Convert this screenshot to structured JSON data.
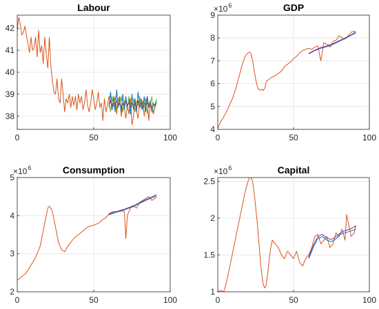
{
  "chart_data": [
    {
      "type": "line",
      "title": "Labour",
      "multiplier_label": "",
      "xlim": [
        0,
        100
      ],
      "ylim": [
        37.4,
        42.6
      ],
      "xticks": [
        0,
        50,
        100
      ],
      "yticks": [
        38,
        39,
        40,
        41,
        42
      ],
      "grid": true,
      "series": [
        {
          "color": "#D95319",
          "x": [
            0,
            1,
            2,
            3,
            4,
            5,
            6,
            7,
            8,
            9,
            10,
            11,
            12,
            13,
            14,
            15,
            16,
            17,
            18,
            19,
            20,
            21,
            22,
            23,
            24,
            25,
            26,
            27,
            28,
            29,
            30,
            31,
            32,
            33,
            34,
            35,
            36,
            37,
            38,
            39,
            40,
            41,
            42,
            43,
            44,
            45,
            46,
            47,
            48,
            49,
            50,
            51,
            52,
            53,
            54,
            55,
            56,
            57,
            58,
            59,
            60,
            61,
            62,
            63,
            64,
            65,
            66,
            67,
            68,
            69,
            70,
            71,
            72,
            73,
            74,
            75,
            76,
            77,
            78,
            79,
            80,
            81,
            82,
            83,
            84,
            85,
            86,
            87,
            88,
            89,
            90,
            91
          ],
          "y": [
            41.9,
            42.5,
            42.2,
            41.7,
            41.8,
            42.1,
            41.7,
            41.3,
            40.9,
            41.6,
            41.0,
            41.1,
            41.6,
            40.7,
            41.9,
            40.9,
            41.2,
            40.4,
            41.6,
            40.8,
            40.2,
            41.6,
            40.3,
            39.6,
            39.1,
            39.0,
            39.7,
            38.8,
            38.6,
            39.7,
            39.0,
            38.2,
            38.8,
            38.6,
            39.0,
            38.4,
            38.9,
            38.5,
            38.9,
            38.3,
            39.0,
            38.6,
            38.9,
            38.3,
            38.6,
            39.2,
            38.5,
            38.2,
            38.6,
            39.2,
            38.8,
            38.3,
            38.6,
            39.1,
            38.4,
            38.6,
            37.8,
            38.8,
            38.2,
            38.5,
            38.9,
            38.7,
            38.3,
            38.8,
            38.6,
            38.1,
            38.7,
            38.9,
            38.0,
            38.6,
            38.4,
            37.9,
            38.5,
            38.1,
            38.8,
            37.6,
            38.0,
            38.6,
            38.2,
            37.9,
            38.8,
            38.4,
            38.7,
            38.0,
            38.6,
            38.9,
            37.8,
            38.5,
            38.3,
            38.1,
            38.4,
            38.6
          ]
        },
        {
          "color": "#0072BD",
          "x": [
            60,
            61,
            62,
            63,
            64,
            65,
            66,
            67,
            68,
            69,
            70,
            71,
            72,
            73,
            74,
            75,
            76,
            77,
            78,
            79,
            80,
            81,
            82,
            83,
            84,
            85,
            86,
            87,
            88,
            89,
            90,
            91
          ],
          "y": [
            38.4,
            39.1,
            38.3,
            38.9,
            38.2,
            39.2,
            38.4,
            38.8,
            38.2,
            39.0,
            38.3,
            38.9,
            38.4,
            38.8,
            38.1,
            39.0,
            38.3,
            38.8,
            38.2,
            39.1,
            38.4,
            38.8,
            38.3,
            38.9,
            38.2,
            38.9,
            38.4,
            38.7,
            38.2,
            38.6,
            38.4,
            38.7
          ]
        },
        {
          "color": "#77AC30",
          "x": [
            60,
            61,
            62,
            63,
            64,
            65,
            66,
            67,
            68,
            69,
            70,
            71,
            72,
            73,
            74,
            75,
            76,
            77,
            78,
            79,
            80,
            81,
            82,
            83,
            84,
            85,
            86,
            87,
            88,
            89,
            90,
            91
          ],
          "y": [
            38.6,
            38.2,
            38.9,
            38.4,
            38.9,
            38.3,
            38.8,
            38.5,
            38.9,
            38.2,
            38.7,
            38.6,
            38.3,
            38.9,
            38.5,
            38.4,
            38.8,
            38.2,
            38.7,
            38.5,
            38.9,
            38.3,
            38.6,
            38.4,
            38.8,
            38.1,
            38.6,
            38.5,
            38.9,
            38.1,
            38.5,
            38.8
          ]
        },
        {
          "color": "#7E2F8E",
          "x": [
            60,
            61,
            62,
            63,
            64,
            65,
            66,
            67,
            68,
            69,
            70,
            71,
            72,
            73,
            74,
            75,
            76,
            77,
            78,
            79,
            80,
            81,
            82,
            83,
            84,
            85,
            86,
            87,
            88,
            89,
            90,
            91
          ],
          "y": [
            38.5,
            38.7,
            38.5,
            38.6,
            38.5,
            38.7,
            38.5,
            38.6,
            38.4,
            38.6,
            38.5,
            38.7,
            38.5,
            38.6,
            38.4,
            38.6,
            38.5,
            38.6,
            38.4,
            38.7,
            38.5,
            38.6,
            38.4,
            38.6,
            38.5,
            38.6,
            38.4,
            38.6,
            38.4,
            38.5,
            38.5,
            38.6
          ]
        }
      ]
    },
    {
      "type": "line",
      "title": "GDP",
      "multiplier_label": "×10",
      "multiplier_exponent": "6",
      "xlim": [
        0,
        100
      ],
      "ylim": [
        4,
        9
      ],
      "xticks": [
        0,
        50,
        100
      ],
      "yticks": [
        4,
        5,
        6,
        7,
        8,
        9
      ],
      "grid": true,
      "series": [
        {
          "color": "#D95319",
          "x": [
            0,
            2,
            4,
            6,
            8,
            10,
            12,
            14,
            16,
            18,
            20,
            21,
            22,
            23,
            24,
            25,
            26,
            27,
            28,
            29,
            30,
            31,
            32,
            34,
            36,
            38,
            40,
            42,
            44,
            46,
            48,
            50,
            52,
            54,
            56,
            58,
            60,
            62,
            64,
            66,
            68,
            70,
            72,
            73,
            74,
            75,
            76,
            78,
            80,
            82,
            84,
            86,
            88,
            90,
            91
          ],
          "y": [
            4.05,
            4.35,
            4.55,
            4.8,
            5.1,
            5.4,
            5.8,
            6.3,
            6.8,
            7.2,
            7.35,
            7.38,
            7.3,
            7.0,
            6.6,
            6.2,
            5.9,
            5.75,
            5.72,
            5.76,
            5.7,
            5.8,
            6.1,
            6.2,
            6.3,
            6.35,
            6.45,
            6.55,
            6.75,
            6.85,
            6.95,
            7.1,
            7.2,
            7.35,
            7.45,
            7.5,
            7.55,
            7.5,
            7.6,
            7.65,
            7.0,
            7.8,
            7.7,
            7.7,
            7.6,
            7.7,
            7.85,
            7.9,
            8.1,
            8.0,
            7.95,
            8.1,
            8.25,
            8.3,
            8.25
          ]
        },
        {
          "color": "#0072BD",
          "x": [
            60,
            64,
            68,
            72,
            76,
            80,
            84,
            88,
            91
          ],
          "y": [
            7.3,
            7.45,
            7.55,
            7.62,
            7.72,
            7.85,
            7.98,
            8.12,
            8.22
          ]
        },
        {
          "color": "#7E2F8E",
          "x": [
            60,
            64,
            68,
            72,
            76,
            80,
            84,
            88,
            91
          ],
          "y": [
            7.32,
            7.47,
            7.58,
            7.65,
            7.75,
            7.88,
            8.0,
            8.14,
            8.26
          ]
        }
      ]
    },
    {
      "type": "line",
      "title": "Consumption",
      "multiplier_label": "×10",
      "multiplier_exponent": "6",
      "xlim": [
        0,
        100
      ],
      "ylim": [
        2,
        5
      ],
      "xticks": [
        0,
        50,
        100
      ],
      "yticks": [
        2,
        3,
        4,
        5
      ],
      "grid": true,
      "series": [
        {
          "color": "#D95319",
          "x": [
            0,
            3,
            6,
            9,
            12,
            15,
            17,
            19,
            20,
            21,
            22,
            23,
            24,
            25,
            27,
            29,
            31,
            33,
            35,
            37,
            40,
            43,
            46,
            50,
            53,
            56,
            58,
            60,
            62,
            64,
            66,
            68,
            70,
            71,
            72,
            73,
            74,
            76,
            78,
            80,
            82,
            84,
            86,
            88,
            90,
            91
          ],
          "y": [
            2.3,
            2.4,
            2.5,
            2.7,
            2.9,
            3.2,
            3.6,
            4.0,
            4.2,
            4.25,
            4.2,
            4.1,
            3.9,
            3.7,
            3.3,
            3.1,
            3.05,
            3.2,
            3.3,
            3.4,
            3.5,
            3.6,
            3.7,
            3.75,
            3.8,
            3.9,
            3.95,
            4.05,
            4.1,
            4.1,
            4.12,
            4.15,
            4.1,
            3.4,
            4.0,
            4.1,
            4.2,
            4.25,
            4.2,
            4.35,
            4.4,
            4.45,
            4.5,
            4.4,
            4.45,
            4.5
          ]
        },
        {
          "color": "#0072BD",
          "x": [
            60,
            64,
            68,
            72,
            76,
            80,
            84,
            88,
            91
          ],
          "y": [
            4.02,
            4.08,
            4.12,
            4.18,
            4.24,
            4.32,
            4.4,
            4.47,
            4.52
          ]
        },
        {
          "color": "#7E2F8E",
          "x": [
            60,
            64,
            68,
            72,
            76,
            80,
            84,
            88,
            91
          ],
          "y": [
            4.04,
            4.1,
            4.14,
            4.2,
            4.26,
            4.34,
            4.42,
            4.49,
            4.55
          ]
        }
      ]
    },
    {
      "type": "line",
      "title": "Capital",
      "multiplier_label": "×10",
      "multiplier_exponent": "6",
      "xlim": [
        0,
        100
      ],
      "ylim": [
        1,
        2.55
      ],
      "xticks": [
        0,
        50,
        100
      ],
      "yticks": [
        1,
        1.5,
        2,
        2.5
      ],
      "grid": true,
      "series": [
        {
          "color": "#D95319",
          "x": [
            0,
            2,
            4,
            6,
            8,
            10,
            12,
            14,
            16,
            18,
            20,
            21,
            22,
            23,
            24,
            25,
            26,
            27,
            28,
            29,
            30,
            31,
            32,
            33,
            34,
            35,
            36,
            38,
            40,
            42,
            44,
            46,
            48,
            50,
            52,
            54,
            56,
            58,
            60,
            62,
            64,
            66,
            68,
            70,
            72,
            74,
            76,
            78,
            80,
            82,
            84,
            85,
            86,
            87,
            88,
            90,
            91
          ],
          "y": [
            1.0,
            1.02,
            1.0,
            1.15,
            1.35,
            1.55,
            1.75,
            1.95,
            2.15,
            2.35,
            2.5,
            2.55,
            2.55,
            2.5,
            2.35,
            2.15,
            1.95,
            1.7,
            1.45,
            1.25,
            1.1,
            1.05,
            1.1,
            1.25,
            1.45,
            1.6,
            1.7,
            1.65,
            1.6,
            1.5,
            1.45,
            1.55,
            1.5,
            1.45,
            1.55,
            1.4,
            1.35,
            1.45,
            1.5,
            1.6,
            1.75,
            1.78,
            1.65,
            1.7,
            1.75,
            1.6,
            1.65,
            1.8,
            1.75,
            1.85,
            1.7,
            2.05,
            1.95,
            1.85,
            1.75,
            1.8,
            1.9
          ]
        },
        {
          "color": "#0072BD",
          "x": [
            60,
            63,
            66,
            69,
            72,
            75,
            78,
            81,
            84,
            87,
            90,
            91
          ],
          "y": [
            1.45,
            1.6,
            1.72,
            1.75,
            1.7,
            1.68,
            1.72,
            1.78,
            1.8,
            1.82,
            1.84,
            1.85
          ]
        },
        {
          "color": "#7E2F8E",
          "x": [
            60,
            63,
            66,
            69,
            72,
            75,
            78,
            81,
            84,
            87,
            90,
            91
          ],
          "y": [
            1.47,
            1.63,
            1.75,
            1.78,
            1.73,
            1.71,
            1.75,
            1.8,
            1.83,
            1.85,
            1.88,
            1.9
          ]
        }
      ]
    }
  ]
}
